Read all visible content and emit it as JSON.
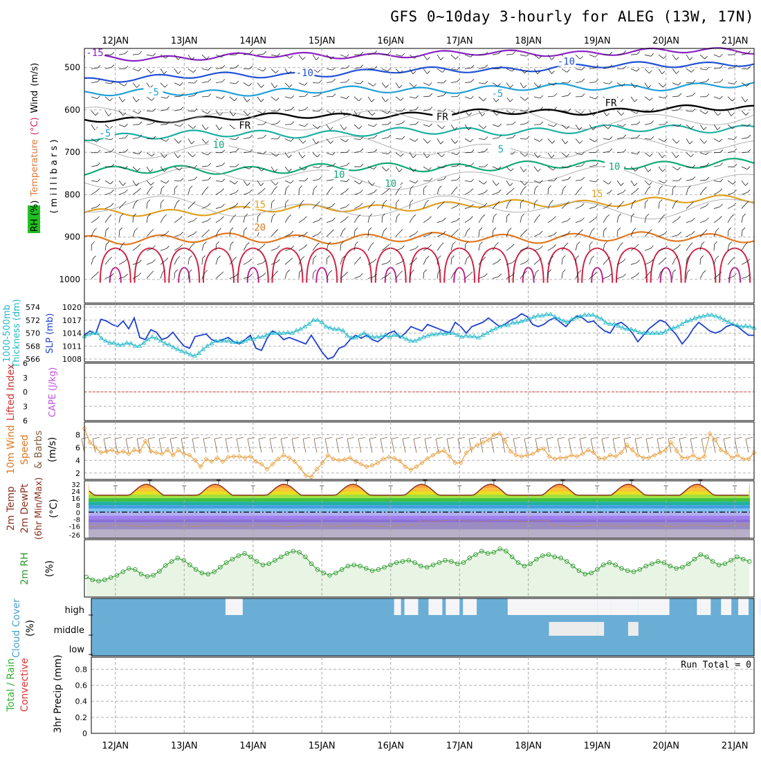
{
  "title": "GFS 0~10day 3-hourly for ALEG (13W, 17N)",
  "days": [
    "12JAN",
    "13JAN",
    "14JAN",
    "15JAN",
    "16JAN",
    "17JAN",
    "18JAN",
    "19JAN",
    "20JAN",
    "21JAN"
  ],
  "colors": {
    "temp_cold": "#8a1fc4",
    "temp_mid": "#1f4fd6",
    "temp_cool": "#1fa0d8",
    "temp_fr": "#000000",
    "temp_warm": "#1bb0a0",
    "temp_green": "#10a878",
    "temp_15": "#e0a020",
    "temp_20": "#e07820",
    "temp_hot": "#d02040",
    "slp": "#1f3fd0",
    "thick": "#20b8c8",
    "wind10": "#e8a040",
    "rh": "#2a9a2a",
    "cloud": "#6aaed6"
  },
  "chart_data": [
    {
      "type": "line",
      "panel": "upper-air",
      "ylabel_parts": [
        "RH (%)",
        "Temperature",
        "(°C)",
        "Wind",
        "(m/s)"
      ],
      "yaxis_label": "( m i l l i b a r s )",
      "y_ticks": [
        500,
        600,
        700,
        800,
        900,
        1000
      ],
      "ylim": [
        455,
        1010
      ],
      "contour_labels": [
        {
          "text": "-15",
          "day": 11.7,
          "p": 470
        },
        {
          "text": "-10",
          "day": 18.55,
          "p": 490
        },
        {
          "text": "-10",
          "day": 14.75,
          "p": 517
        },
        {
          "text": "-5",
          "day": 12.55,
          "p": 563
        },
        {
          "text": "-5",
          "day": 17.55,
          "p": 566
        },
        {
          "text": "FR",
          "day": 13.88,
          "p": 641
        },
        {
          "text": "FR",
          "day": 16.75,
          "p": 621
        },
        {
          "text": "FR",
          "day": 19.2,
          "p": 588
        },
        {
          "text": "-5",
          "day": 11.85,
          "p": 660
        },
        {
          "text": "5",
          "day": 17.6,
          "p": 697
        },
        {
          "text": "10",
          "day": 19.25,
          "p": 738
        },
        {
          "text": "10",
          "day": 15.25,
          "p": 757
        },
        {
          "text": "10",
          "day": 16.0,
          "p": 778
        },
        {
          "text": "15",
          "day": 14.1,
          "p": 828
        },
        {
          "text": "15",
          "day": 19.0,
          "p": 803
        },
        {
          "text": "20",
          "day": 14.1,
          "p": 882
        },
        {
          "text": "10",
          "day": 13.5,
          "p": 687
        }
      ]
    },
    {
      "type": "line",
      "panel": "slp-thickness",
      "ylabel_parts": [
        "1000-500mb",
        "Thickness (dm)",
        "SLP (mb)"
      ],
      "left_ticks": [
        566,
        568,
        570,
        572,
        574
      ],
      "right_ticks": [
        1008,
        1011,
        1014,
        1017,
        1020
      ],
      "series": [
        {
          "name": "SLP (mb)",
          "values": [
            1013.5,
            1014.5,
            1013.8,
            1017.2,
            1016.8,
            1016,
            1015.5,
            1016.8,
            1015,
            1017.5,
            1013,
            1012.5,
            1014.8,
            1014.2,
            1012.5,
            1013,
            1014.2,
            1012.5,
            1011,
            1010.5,
            1013.2,
            1013.5,
            1013.8,
            1012.5,
            1012,
            1012.5,
            1013,
            1012,
            1011.5,
            1012.5,
            1013.5,
            1010.5,
            1010,
            1012.8,
            1014.5,
            1013.8,
            1012.5,
            1013,
            1012.5,
            1012,
            1011.5,
            1013.5,
            1011.5,
            1009.5,
            1008,
            1008.5,
            1010.5,
            1011,
            1012.5,
            1013.5,
            1012.8,
            1013.5,
            1012.5,
            1012,
            1013,
            1014,
            1014.5,
            1013,
            1014,
            1015.5,
            1015,
            1014.5,
            1016,
            1015.5,
            1015,
            1014.5,
            1014,
            1016.5,
            1015.5,
            1014,
            1015.5,
            1016,
            1016.5,
            1017.5,
            1016.5,
            1015.5,
            1016,
            1017,
            1017.5,
            1018.5,
            1017.8,
            1016,
            1015.5,
            1016,
            1017,
            1017.5,
            1016.5,
            1015.5,
            1017,
            1018,
            1017.5,
            1016.5,
            1016.8,
            1015.5,
            1014.5,
            1014,
            1016,
            1016.5,
            1015.5,
            1014,
            1012,
            1013.5,
            1015,
            1016,
            1017,
            1016.5,
            1015,
            1013.5,
            1011.5,
            1013,
            1015,
            1016.5,
            1015.5,
            1014.5,
            1014,
            1014.5,
            1015.5,
            1016,
            1015.5,
            1014.5,
            1013.5,
            1013.5
          ]
        },
        {
          "name": "1000-500mb Thickness (dm)",
          "values": [
            569.5,
            569.8,
            570,
            570,
            569.2,
            568.8,
            568.5,
            568.5,
            568.2,
            568.2,
            568.5,
            568.4,
            568,
            568,
            568.5,
            569,
            569.4,
            569.2,
            568.8,
            568.4,
            568.2,
            567.8,
            567.5,
            567.2,
            567,
            566.7,
            566.5,
            566.9,
            567.5,
            568,
            568.4,
            568.8,
            568.8,
            568.8,
            568.8,
            568.6,
            568.6,
            568.6,
            568.8,
            569.1,
            569.1,
            569.4,
            569.4,
            569.7,
            570,
            570,
            570,
            570,
            570.1,
            570,
            570.4,
            570.6,
            571,
            571.4,
            572,
            572,
            571.7,
            571,
            570.8,
            570.6,
            570.6,
            570.4,
            569.6,
            569.3,
            569.3,
            569.6,
            570,
            569.6,
            569.4,
            569.4,
            569.5,
            569.7,
            569.4,
            569.7,
            569.7,
            569.4,
            569.1,
            568.8,
            568.8,
            569.1,
            569.4,
            569.6,
            569.8,
            569.8,
            570,
            569.9,
            570,
            570,
            569.7,
            569.4,
            569.6,
            569.5,
            569.5,
            569.3,
            569.7,
            570,
            570.4,
            570.7,
            571,
            571.2,
            571.2,
            571.6,
            571.6,
            571.8,
            572,
            572.2,
            572.5,
            572.7,
            572.7,
            572.9,
            572.9,
            572.5,
            572.2,
            571.9,
            571.7,
            572.1,
            572.4,
            572.6,
            572.8,
            572.8,
            572.8,
            572.5,
            572.2,
            571.6,
            571.4,
            571.4,
            571.1,
            570.8,
            570.6,
            570.6,
            570.4,
            570.1,
            570,
            570,
            570,
            570,
            570,
            570.2,
            570.6,
            570.8,
            571,
            571.4,
            571.8,
            572,
            572.3,
            572.5,
            572.6,
            572.8,
            572.8,
            572.6,
            572.4,
            572,
            571.7,
            571.4,
            571.2,
            571,
            571.1,
            571,
            570.8
          ]
        }
      ]
    },
    {
      "type": "line",
      "panel": "lifted-index",
      "ylabel_parts": [
        "Lifted Index",
        "CAPE (J/kg)"
      ],
      "y_ticks": [
        -6,
        -3,
        0,
        3,
        6
      ],
      "ylim": [
        6,
        -6
      ],
      "zero_line": true
    },
    {
      "type": "line",
      "panel": "wind10m",
      "ylabel_parts": [
        "10m Wind",
        "Speed",
        "& Barbs",
        "(m/s)"
      ],
      "y_ticks": [
        2,
        4,
        6,
        8
      ],
      "ylim": [
        1,
        10
      ],
      "series": [
        {
          "name": "10m Wind Speed",
          "values": [
            9,
            6.8,
            6,
            5.2,
            5.4,
            5.6,
            5.2,
            5.4,
            5,
            5.6,
            5.4,
            7,
            5.4,
            5.2,
            5,
            5.6,
            4.8,
            5.6,
            5,
            4.8,
            4,
            3,
            4.2,
            3.8,
            4.4,
            3.8,
            4.5,
            4.6,
            4.6,
            4.4,
            4.6,
            3.8,
            3.4,
            2.6,
            3.4,
            4.2,
            4.8,
            4.4,
            3.8,
            2.8,
            1.6,
            1.4,
            2.6,
            3.6,
            4.8,
            4.2,
            4,
            4.1,
            4.4,
            3.8,
            3.4,
            3,
            3.2,
            3.6,
            4.2,
            4.5,
            4.3,
            3.9,
            3,
            2.5,
            3,
            3.6,
            4.3,
            4.8,
            5.3,
            5.5,
            4.6,
            3.6,
            3.6,
            5.2,
            5.8,
            6.4,
            6.8,
            7.2,
            8,
            8.2,
            7,
            5.4,
            4.8,
            4.6,
            4.8,
            5,
            5.6,
            5.8,
            4.6,
            4.2,
            4.4,
            4.4,
            4.8,
            4.6,
            5,
            5.6,
            5.2,
            4.3,
            4.3,
            4.8,
            4.6,
            5.2,
            6.4,
            5.6,
            4.8,
            4.4,
            4.4,
            4.8,
            5.2,
            5.6,
            6.8,
            5.5,
            4.4,
            4.4,
            4.8,
            4.2,
            4.6,
            8.2,
            7.2,
            5.6,
            5.2,
            4.4,
            4.8,
            4.2,
            4.2,
            5.2
          ]
        }
      ]
    },
    {
      "type": "area",
      "panel": "temp2m",
      "ylabel_parts": [
        "2m Temp",
        "2m DewPt",
        "(6hr Min/Max)",
        "(°C)"
      ],
      "y_ticks": [
        -26,
        -16,
        -8,
        0,
        8,
        16,
        24,
        32
      ],
      "ylim": [
        -30,
        36
      ],
      "bands": [
        {
          "from": 16,
          "to": 36,
          "color": "#ffa040"
        },
        {
          "from": 24,
          "to": 28,
          "color": "#ffc040"
        },
        {
          "from": 20,
          "to": 24,
          "color": "#e8e020"
        },
        {
          "from": 16,
          "to": 20,
          "color": "#a0e040"
        },
        {
          "from": 12,
          "to": 16,
          "color": "#40c040"
        },
        {
          "from": 8,
          "to": 12,
          "color": "#20b0a0"
        },
        {
          "from": 4,
          "to": 8,
          "color": "#40a0e0"
        },
        {
          "from": 0,
          "to": 4,
          "color": "#80c0f0"
        },
        {
          "from": -4,
          "to": 0,
          "color": "#b0b0f0"
        },
        {
          "from": -8,
          "to": -4,
          "color": "#a080f0"
        },
        {
          "from": -12,
          "to": -8,
          "color": "#8a70d8"
        },
        {
          "from": -20,
          "to": -12,
          "color": "#9a8cc0"
        },
        {
          "from": -30,
          "to": -20,
          "color": "#b8b0c8"
        }
      ],
      "temp_min": 19.5,
      "temp_max": 32,
      "dew": -15.5,
      "dew_dry": -10
    },
    {
      "type": "area",
      "panel": "rh2m",
      "ylabel_parts": [
        "2m RH",
        "(%)"
      ],
      "series": [
        {
          "name": "2m RH",
          "values": [
            35,
            30,
            28,
            30,
            34,
            38,
            44,
            50,
            48,
            40,
            36,
            38,
            45,
            55,
            62,
            68,
            64,
            56,
            48,
            42,
            40,
            44,
            52,
            60,
            66,
            72,
            76,
            70,
            62,
            56,
            58,
            64,
            70,
            76,
            80,
            78,
            70,
            58,
            48,
            42,
            38,
            42,
            48,
            54,
            56,
            54,
            50,
            46,
            48,
            52,
            56,
            60,
            62,
            64,
            60,
            54,
            52,
            56,
            60,
            64,
            62,
            58,
            60,
            68,
            74,
            80,
            76,
            78,
            84,
            80,
            70,
            60,
            54,
            58,
            66,
            72,
            74,
            70,
            68,
            62,
            54,
            46,
            40,
            42,
            48,
            56,
            60,
            56,
            50,
            46,
            44,
            48,
            54,
            58,
            62,
            60,
            54,
            50,
            52,
            58,
            66,
            74,
            70,
            62,
            56,
            58,
            64,
            70,
            66,
            62
          ]
        }
      ]
    },
    {
      "type": "heatmap",
      "panel": "cloud",
      "ylabel_parts": [
        "Cloud Cover",
        "(%)"
      ],
      "levels": [
        "high",
        "middle",
        "low"
      ],
      "clear_high": [
        [
          13.6,
          13.85
        ],
        [
          16.05,
          16.15
        ],
        [
          16.2,
          16.4
        ],
        [
          16.55,
          16.75
        ],
        [
          16.8,
          17.0
        ],
        [
          17.05,
          17.25
        ],
        [
          17.7,
          19.0
        ],
        [
          19.0,
          19.2
        ],
        [
          19.2,
          19.35
        ],
        [
          19.35,
          19.6
        ],
        [
          19.6,
          20.05
        ],
        [
          20.45,
          20.5
        ],
        [
          20.5,
          20.65
        ],
        [
          20.8,
          20.95
        ],
        [
          21.05,
          21.2
        ],
        [
          21.35,
          21.5
        ]
      ],
      "clear_mid": [
        [
          18.3,
          19.0
        ],
        [
          19.0,
          19.1
        ],
        [
          19.45,
          19.6
        ]
      ]
    },
    {
      "type": "bar",
      "panel": "precip",
      "ylabel_parts": [
        "Total / Rain",
        "Convective",
        "3hr Precip (mm)"
      ],
      "y_ticks": [
        0,
        0.2,
        0.4,
        0.6,
        0.8
      ],
      "ylim": [
        0,
        0.95
      ],
      "run_total": "Run Total = 0"
    }
  ]
}
